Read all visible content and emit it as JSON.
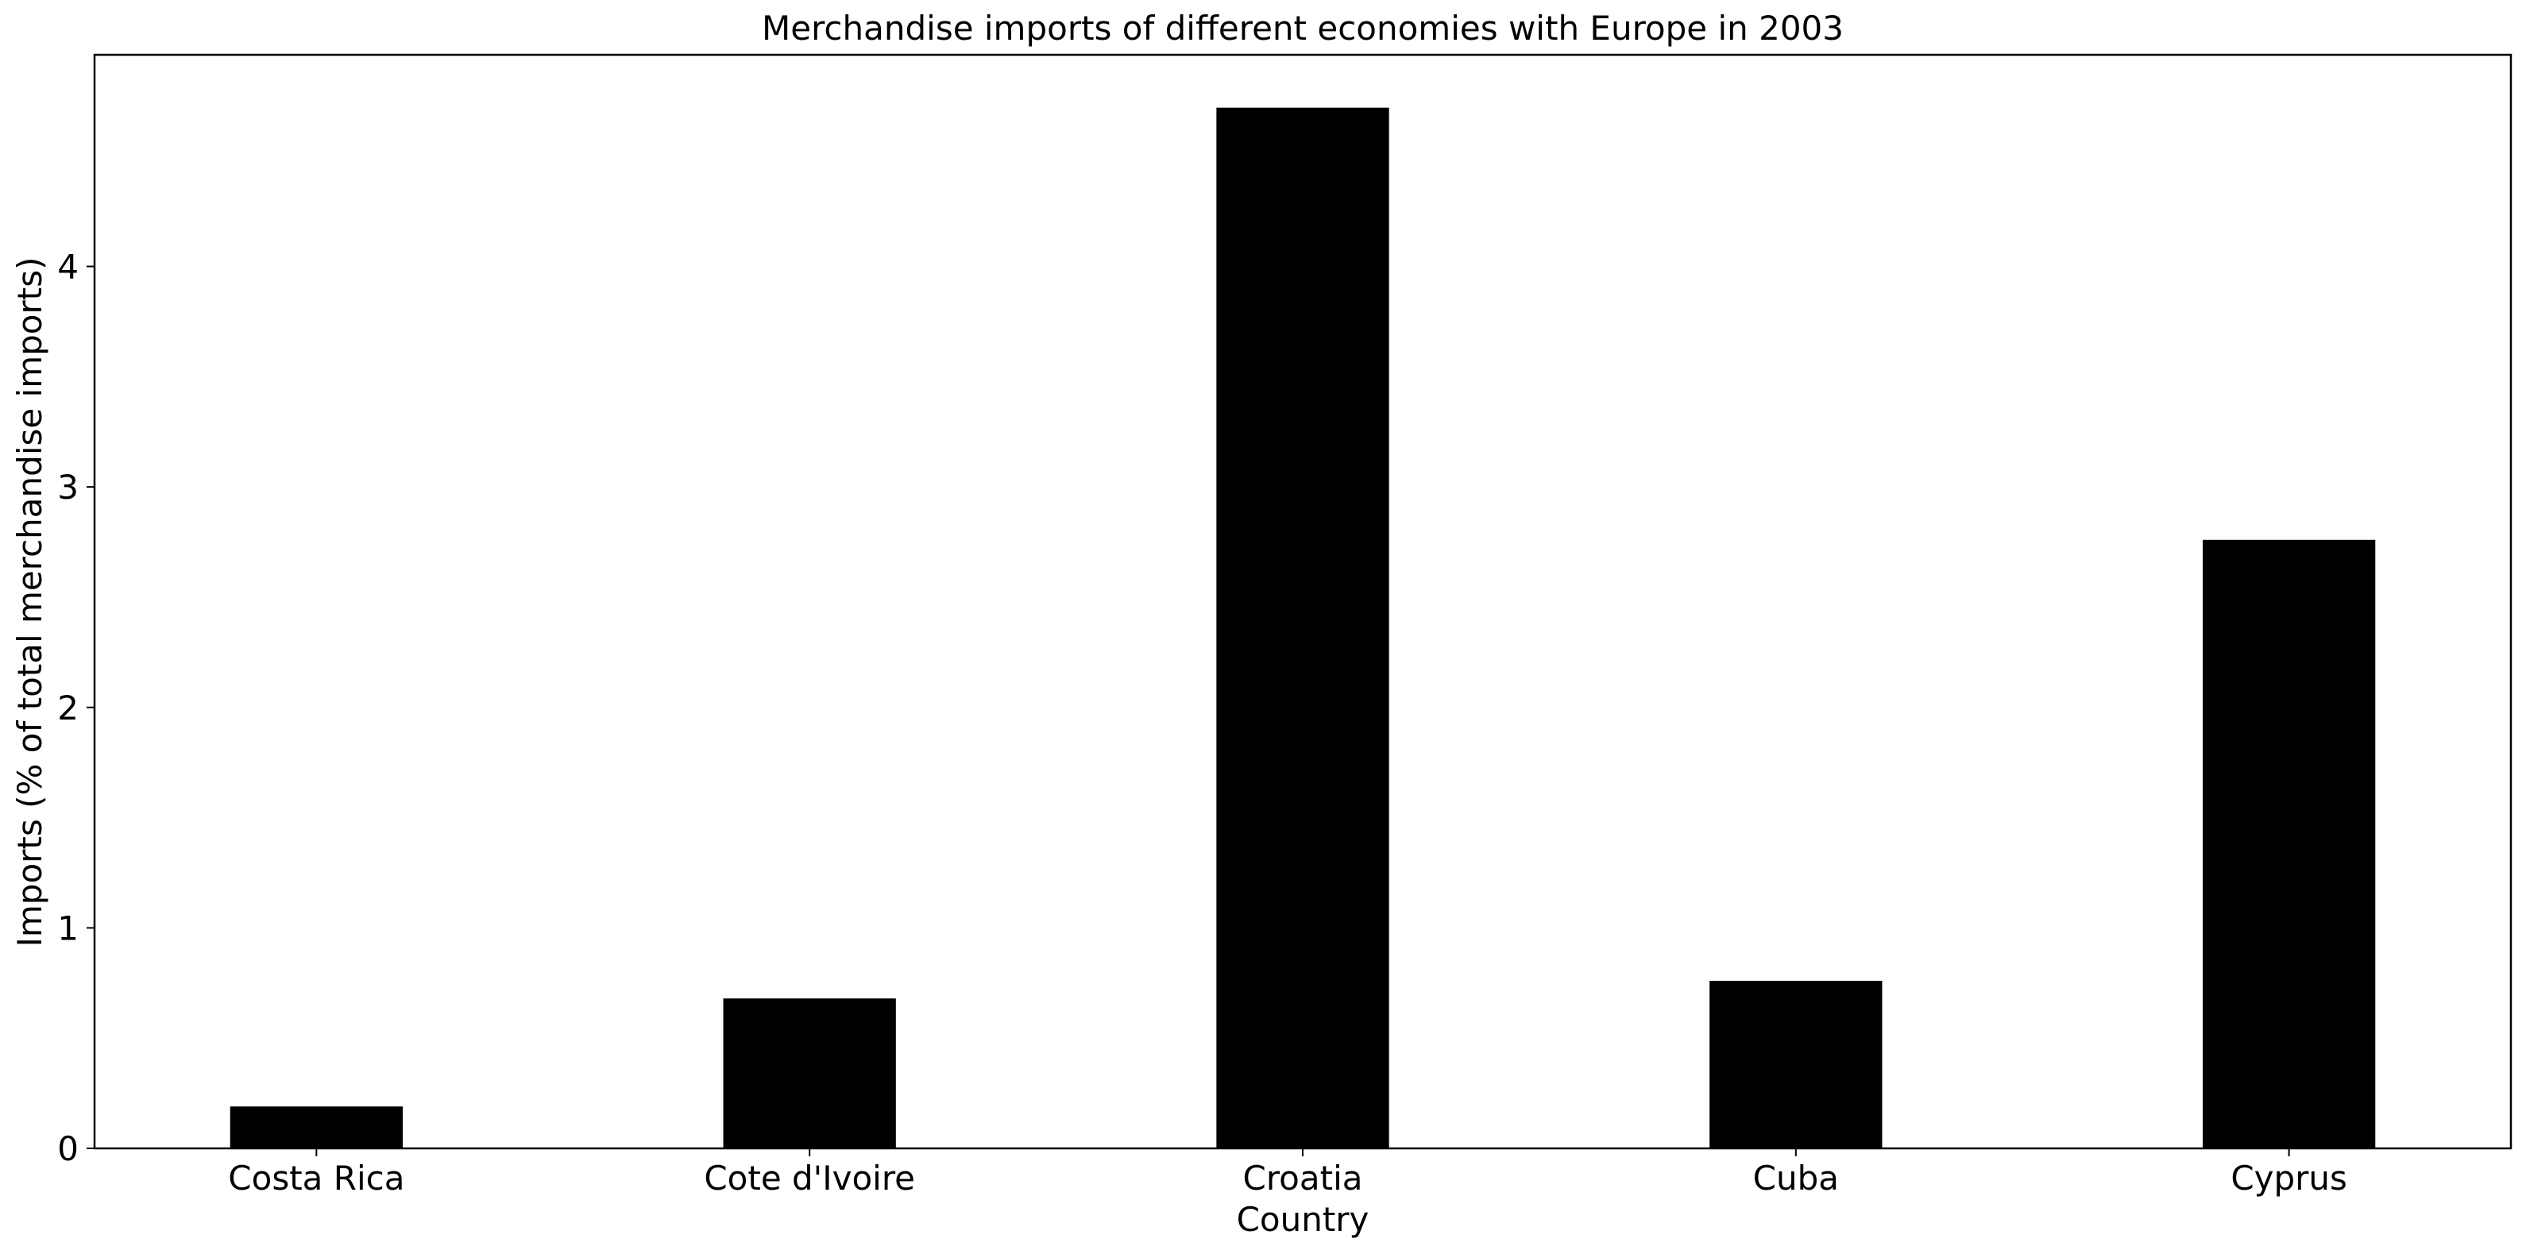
{
  "chart_data": {
    "type": "bar",
    "title": "Merchandise imports of different economies with Europe in 2003",
    "xlabel": "Country",
    "ylabel": "Imports (% of total merchandise imports)",
    "categories": [
      "Costa Rica",
      "Cote d'Ivoire",
      "Croatia",
      "Cuba",
      "Cyprus"
    ],
    "values": [
      0.19,
      0.68,
      4.72,
      0.76,
      2.76
    ],
    "ylim": [
      0,
      4.96
    ],
    "yticks": [
      0,
      1,
      2,
      3,
      4
    ],
    "grid": false,
    "bar_color": "#000000"
  }
}
